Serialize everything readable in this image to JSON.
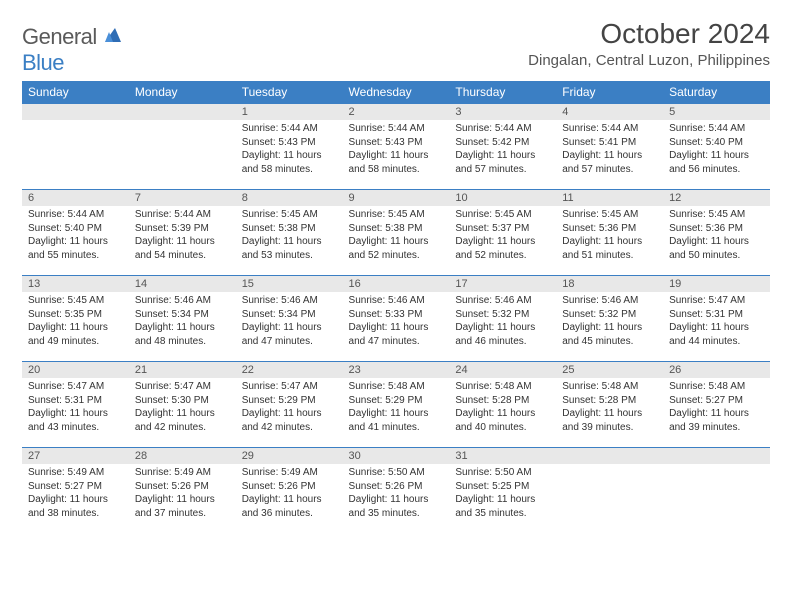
{
  "logo": {
    "general": "General",
    "blue": "Blue"
  },
  "title": "October 2024",
  "location": "Dingalan, Central Luzon, Philippines",
  "colors": {
    "header_bg": "#3b7fc4",
    "daynum_bg": "#e8e8e8",
    "border": "#3b7fc4"
  },
  "weekdays": [
    "Sunday",
    "Monday",
    "Tuesday",
    "Wednesday",
    "Thursday",
    "Friday",
    "Saturday"
  ],
  "weeks": [
    [
      null,
      null,
      {
        "n": "1",
        "sr": "Sunrise: 5:44 AM",
        "ss": "Sunset: 5:43 PM",
        "d1": "Daylight: 11 hours",
        "d2": "and 58 minutes."
      },
      {
        "n": "2",
        "sr": "Sunrise: 5:44 AM",
        "ss": "Sunset: 5:43 PM",
        "d1": "Daylight: 11 hours",
        "d2": "and 58 minutes."
      },
      {
        "n": "3",
        "sr": "Sunrise: 5:44 AM",
        "ss": "Sunset: 5:42 PM",
        "d1": "Daylight: 11 hours",
        "d2": "and 57 minutes."
      },
      {
        "n": "4",
        "sr": "Sunrise: 5:44 AM",
        "ss": "Sunset: 5:41 PM",
        "d1": "Daylight: 11 hours",
        "d2": "and 57 minutes."
      },
      {
        "n": "5",
        "sr": "Sunrise: 5:44 AM",
        "ss": "Sunset: 5:40 PM",
        "d1": "Daylight: 11 hours",
        "d2": "and 56 minutes."
      }
    ],
    [
      {
        "n": "6",
        "sr": "Sunrise: 5:44 AM",
        "ss": "Sunset: 5:40 PM",
        "d1": "Daylight: 11 hours",
        "d2": "and 55 minutes."
      },
      {
        "n": "7",
        "sr": "Sunrise: 5:44 AM",
        "ss": "Sunset: 5:39 PM",
        "d1": "Daylight: 11 hours",
        "d2": "and 54 minutes."
      },
      {
        "n": "8",
        "sr": "Sunrise: 5:45 AM",
        "ss": "Sunset: 5:38 PM",
        "d1": "Daylight: 11 hours",
        "d2": "and 53 minutes."
      },
      {
        "n": "9",
        "sr": "Sunrise: 5:45 AM",
        "ss": "Sunset: 5:38 PM",
        "d1": "Daylight: 11 hours",
        "d2": "and 52 minutes."
      },
      {
        "n": "10",
        "sr": "Sunrise: 5:45 AM",
        "ss": "Sunset: 5:37 PM",
        "d1": "Daylight: 11 hours",
        "d2": "and 52 minutes."
      },
      {
        "n": "11",
        "sr": "Sunrise: 5:45 AM",
        "ss": "Sunset: 5:36 PM",
        "d1": "Daylight: 11 hours",
        "d2": "and 51 minutes."
      },
      {
        "n": "12",
        "sr": "Sunrise: 5:45 AM",
        "ss": "Sunset: 5:36 PM",
        "d1": "Daylight: 11 hours",
        "d2": "and 50 minutes."
      }
    ],
    [
      {
        "n": "13",
        "sr": "Sunrise: 5:45 AM",
        "ss": "Sunset: 5:35 PM",
        "d1": "Daylight: 11 hours",
        "d2": "and 49 minutes."
      },
      {
        "n": "14",
        "sr": "Sunrise: 5:46 AM",
        "ss": "Sunset: 5:34 PM",
        "d1": "Daylight: 11 hours",
        "d2": "and 48 minutes."
      },
      {
        "n": "15",
        "sr": "Sunrise: 5:46 AM",
        "ss": "Sunset: 5:34 PM",
        "d1": "Daylight: 11 hours",
        "d2": "and 47 minutes."
      },
      {
        "n": "16",
        "sr": "Sunrise: 5:46 AM",
        "ss": "Sunset: 5:33 PM",
        "d1": "Daylight: 11 hours",
        "d2": "and 47 minutes."
      },
      {
        "n": "17",
        "sr": "Sunrise: 5:46 AM",
        "ss": "Sunset: 5:32 PM",
        "d1": "Daylight: 11 hours",
        "d2": "and 46 minutes."
      },
      {
        "n": "18",
        "sr": "Sunrise: 5:46 AM",
        "ss": "Sunset: 5:32 PM",
        "d1": "Daylight: 11 hours",
        "d2": "and 45 minutes."
      },
      {
        "n": "19",
        "sr": "Sunrise: 5:47 AM",
        "ss": "Sunset: 5:31 PM",
        "d1": "Daylight: 11 hours",
        "d2": "and 44 minutes."
      }
    ],
    [
      {
        "n": "20",
        "sr": "Sunrise: 5:47 AM",
        "ss": "Sunset: 5:31 PM",
        "d1": "Daylight: 11 hours",
        "d2": "and 43 minutes."
      },
      {
        "n": "21",
        "sr": "Sunrise: 5:47 AM",
        "ss": "Sunset: 5:30 PM",
        "d1": "Daylight: 11 hours",
        "d2": "and 42 minutes."
      },
      {
        "n": "22",
        "sr": "Sunrise: 5:47 AM",
        "ss": "Sunset: 5:29 PM",
        "d1": "Daylight: 11 hours",
        "d2": "and 42 minutes."
      },
      {
        "n": "23",
        "sr": "Sunrise: 5:48 AM",
        "ss": "Sunset: 5:29 PM",
        "d1": "Daylight: 11 hours",
        "d2": "and 41 minutes."
      },
      {
        "n": "24",
        "sr": "Sunrise: 5:48 AM",
        "ss": "Sunset: 5:28 PM",
        "d1": "Daylight: 11 hours",
        "d2": "and 40 minutes."
      },
      {
        "n": "25",
        "sr": "Sunrise: 5:48 AM",
        "ss": "Sunset: 5:28 PM",
        "d1": "Daylight: 11 hours",
        "d2": "and 39 minutes."
      },
      {
        "n": "26",
        "sr": "Sunrise: 5:48 AM",
        "ss": "Sunset: 5:27 PM",
        "d1": "Daylight: 11 hours",
        "d2": "and 39 minutes."
      }
    ],
    [
      {
        "n": "27",
        "sr": "Sunrise: 5:49 AM",
        "ss": "Sunset: 5:27 PM",
        "d1": "Daylight: 11 hours",
        "d2": "and 38 minutes."
      },
      {
        "n": "28",
        "sr": "Sunrise: 5:49 AM",
        "ss": "Sunset: 5:26 PM",
        "d1": "Daylight: 11 hours",
        "d2": "and 37 minutes."
      },
      {
        "n": "29",
        "sr": "Sunrise: 5:49 AM",
        "ss": "Sunset: 5:26 PM",
        "d1": "Daylight: 11 hours",
        "d2": "and 36 minutes."
      },
      {
        "n": "30",
        "sr": "Sunrise: 5:50 AM",
        "ss": "Sunset: 5:26 PM",
        "d1": "Daylight: 11 hours",
        "d2": "and 35 minutes."
      },
      {
        "n": "31",
        "sr": "Sunrise: 5:50 AM",
        "ss": "Sunset: 5:25 PM",
        "d1": "Daylight: 11 hours",
        "d2": "and 35 minutes."
      },
      null,
      null
    ]
  ]
}
